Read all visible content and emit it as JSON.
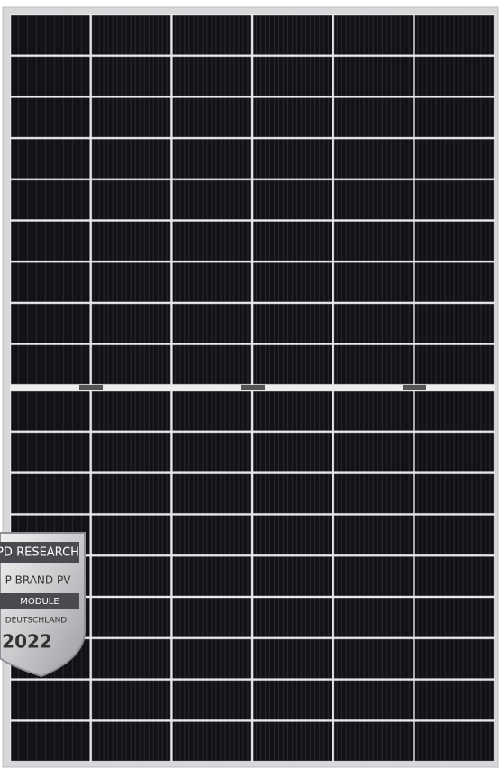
{
  "badge": {
    "line1": "PD RESEARCH",
    "line2": "P BRAND PV",
    "line3": "MODULE",
    "line4": "DEUTSCHLAND",
    "year": "2022"
  }
}
